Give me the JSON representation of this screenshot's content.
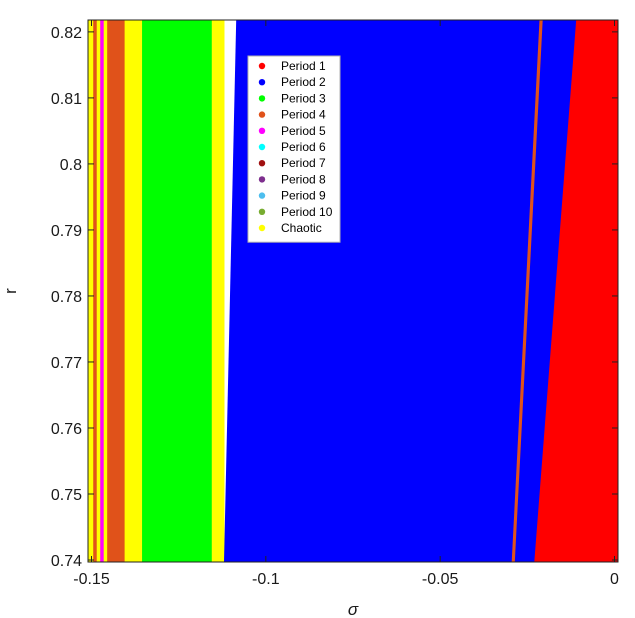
{
  "chart_data": {
    "type": "heatmap",
    "xlabel": "σ",
    "ylabel": "r",
    "xlim": [
      -0.151,
      0.001
    ],
    "ylim": [
      0.7397,
      0.8218
    ],
    "x_ticks": [
      -0.15,
      -0.1,
      -0.05,
      0
    ],
    "x_tick_labels": [
      "-0.15",
      "-0.1",
      "-0.05",
      "0"
    ],
    "y_ticks": [
      0.74,
      0.75,
      0.76,
      0.77,
      0.78,
      0.79,
      0.8,
      0.81,
      0.82
    ],
    "y_tick_labels": [
      "0.74",
      "0.75",
      "0.76",
      "0.77",
      "0.78",
      "0.79",
      "0.8",
      "0.81",
      "0.82"
    ],
    "grid": false,
    "legend_position": "top-left inside plot",
    "legend": [
      {
        "label": "Period 1",
        "color": "#ff0000"
      },
      {
        "label": "Period 2",
        "color": "#0000ff"
      },
      {
        "label": "Period 3",
        "color": "#00ff00"
      },
      {
        "label": "Period 4",
        "color": "#e0521a"
      },
      {
        "label": "Period 5",
        "color": "#ff00ff"
      },
      {
        "label": "Period 6",
        "color": "#00ffff"
      },
      {
        "label": "Period 7",
        "color": "#a01010"
      },
      {
        "label": "Period 8",
        "color": "#7e2f8e"
      },
      {
        "label": "Period 9",
        "color": "#4dbeee"
      },
      {
        "label": "Period 10",
        "color": "#77ac30"
      },
      {
        "label": "Chaotic",
        "color": "#ffff00"
      }
    ],
    "vertical_regions": [
      {
        "label": "Chaotic",
        "x0": -0.151,
        "x1": -0.1495
      },
      {
        "label": "Period 4",
        "x0": -0.1495,
        "x1": -0.1485
      },
      {
        "label": "Chaotic",
        "x0": -0.1485,
        "x1": -0.1475
      },
      {
        "label": "Period 5",
        "x0": -0.1475,
        "x1": -0.1465
      },
      {
        "label": "Chaotic",
        "x0": -0.1465,
        "x1": -0.1455
      },
      {
        "label": "Period 4",
        "x0": -0.1455,
        "x1": -0.1405
      },
      {
        "label": "Chaotic",
        "x0": -0.1405,
        "x1": -0.1355
      },
      {
        "label": "Period 3",
        "x0": -0.1355,
        "x1": -0.1155
      },
      {
        "label": "Chaotic",
        "x0": -0.1155,
        "x1": -0.112
      }
    ],
    "boundaries": [
      {
        "name": "period2-start",
        "points": [
          [
            -0.112,
            0.74
          ],
          [
            -0.1085,
            0.8218
          ]
        ]
      },
      {
        "name": "period4-strip-left",
        "points": [
          [
            -0.0295,
            0.74
          ],
          [
            -0.0215,
            0.8218
          ]
        ]
      },
      {
        "name": "period1-start",
        "points": [
          [
            -0.023,
            0.74
          ],
          [
            -0.011,
            0.8218
          ]
        ]
      }
    ],
    "fill_order": [
      "Period 2",
      "Period 4",
      "Period 2",
      "Period 1"
    ]
  }
}
